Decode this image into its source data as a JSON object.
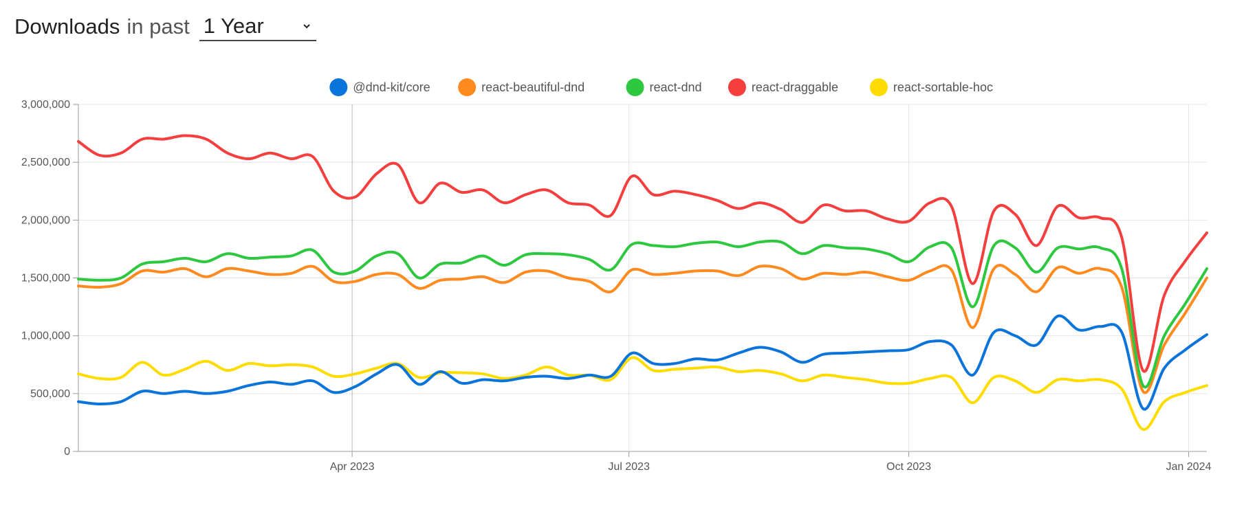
{
  "header": {
    "title": "Downloads",
    "subtitle": "in past",
    "period": "1 Year"
  },
  "chart_data": {
    "type": "line",
    "title": "",
    "xlabel": "",
    "ylabel": "",
    "ylim": [
      0,
      3000000
    ],
    "yticks": [
      {
        "value": 0,
        "label": "0"
      },
      {
        "value": 500000,
        "label": "500,000"
      },
      {
        "value": 1000000,
        "label": "1,000,000"
      },
      {
        "value": 1500000,
        "label": "1,500,000"
      },
      {
        "value": 2000000,
        "label": "2,000,000"
      },
      {
        "value": 2500000,
        "label": "2,500,000"
      },
      {
        "value": 3000000,
        "label": "3,000,000"
      }
    ],
    "xlim": [
      "2023-01-01",
      "2024-01-07"
    ],
    "xticks": [
      {
        "date": "2023-04-01",
        "label": "Apr 2023"
      },
      {
        "date": "2023-07-01",
        "label": "Jul 2023"
      },
      {
        "date": "2023-10-01",
        "label": "Oct 2023"
      },
      {
        "date": "2024-01-01",
        "label": "Jan 2024"
      }
    ],
    "grid": true,
    "legend_position": "top",
    "x": [
      "2023-01-01",
      "2023-01-08",
      "2023-01-15",
      "2023-01-22",
      "2023-01-29",
      "2023-02-05",
      "2023-02-12",
      "2023-02-19",
      "2023-02-26",
      "2023-03-05",
      "2023-03-12",
      "2023-03-19",
      "2023-03-26",
      "2023-04-02",
      "2023-04-09",
      "2023-04-16",
      "2023-04-23",
      "2023-04-30",
      "2023-05-07",
      "2023-05-14",
      "2023-05-21",
      "2023-05-28",
      "2023-06-04",
      "2023-06-11",
      "2023-06-18",
      "2023-06-25",
      "2023-07-02",
      "2023-07-09",
      "2023-07-16",
      "2023-07-23",
      "2023-07-30",
      "2023-08-06",
      "2023-08-13",
      "2023-08-20",
      "2023-08-27",
      "2023-09-03",
      "2023-09-10",
      "2023-09-17",
      "2023-09-24",
      "2023-10-01",
      "2023-10-08",
      "2023-10-15",
      "2023-10-22",
      "2023-10-29",
      "2023-11-05",
      "2023-11-12",
      "2023-11-19",
      "2023-11-26",
      "2023-12-03",
      "2023-12-10",
      "2023-12-17",
      "2023-12-24",
      "2023-12-31",
      "2024-01-07"
    ],
    "series": [
      {
        "name": "@dnd-kit/core",
        "color": "#0a74da",
        "values": [
          430000,
          410000,
          430000,
          520000,
          500000,
          520000,
          500000,
          520000,
          570000,
          600000,
          580000,
          610000,
          510000,
          560000,
          670000,
          750000,
          580000,
          690000,
          590000,
          620000,
          610000,
          640000,
          650000,
          630000,
          660000,
          650000,
          850000,
          760000,
          760000,
          800000,
          790000,
          850000,
          900000,
          860000,
          770000,
          840000,
          850000,
          860000,
          870000,
          880000,
          950000,
          920000,
          660000,
          1030000,
          1000000,
          920000,
          1170000,
          1050000,
          1080000,
          1030000,
          370000,
          720000,
          880000,
          1010000
        ]
      },
      {
        "name": "react-beautiful-dnd",
        "color": "#ff8a1f",
        "values": [
          1430000,
          1420000,
          1450000,
          1560000,
          1550000,
          1580000,
          1510000,
          1580000,
          1560000,
          1530000,
          1540000,
          1600000,
          1470000,
          1470000,
          1530000,
          1530000,
          1410000,
          1480000,
          1490000,
          1510000,
          1460000,
          1550000,
          1560000,
          1500000,
          1470000,
          1380000,
          1570000,
          1530000,
          1540000,
          1560000,
          1560000,
          1520000,
          1600000,
          1580000,
          1490000,
          1540000,
          1530000,
          1550000,
          1510000,
          1480000,
          1560000,
          1570000,
          1070000,
          1580000,
          1530000,
          1380000,
          1590000,
          1540000,
          1580000,
          1420000,
          520000,
          920000,
          1200000,
          1500000
        ]
      },
      {
        "name": "react-dnd",
        "color": "#2ec840",
        "values": [
          1490000,
          1480000,
          1500000,
          1620000,
          1640000,
          1670000,
          1640000,
          1710000,
          1670000,
          1680000,
          1690000,
          1740000,
          1550000,
          1560000,
          1690000,
          1710000,
          1500000,
          1620000,
          1630000,
          1690000,
          1610000,
          1700000,
          1710000,
          1700000,
          1660000,
          1570000,
          1790000,
          1780000,
          1770000,
          1800000,
          1810000,
          1770000,
          1810000,
          1810000,
          1710000,
          1780000,
          1760000,
          1750000,
          1710000,
          1640000,
          1770000,
          1760000,
          1250000,
          1780000,
          1760000,
          1550000,
          1760000,
          1750000,
          1760000,
          1580000,
          570000,
          1000000,
          1280000,
          1580000
        ]
      },
      {
        "name": "react-draggable",
        "color": "#f53f3f",
        "values": [
          2680000,
          2560000,
          2580000,
          2700000,
          2700000,
          2730000,
          2700000,
          2580000,
          2530000,
          2580000,
          2530000,
          2550000,
          2250000,
          2200000,
          2400000,
          2480000,
          2150000,
          2320000,
          2240000,
          2260000,
          2150000,
          2220000,
          2260000,
          2150000,
          2130000,
          2040000,
          2380000,
          2220000,
          2250000,
          2220000,
          2170000,
          2100000,
          2150000,
          2090000,
          1980000,
          2130000,
          2080000,
          2080000,
          2010000,
          1990000,
          2150000,
          2120000,
          1450000,
          2080000,
          2050000,
          1780000,
          2120000,
          2020000,
          2020000,
          1850000,
          700000,
          1350000,
          1650000,
          1890000
        ]
      },
      {
        "name": "react-sortable-hoc",
        "color": "#ffdc00",
        "values": [
          670000,
          630000,
          640000,
          770000,
          660000,
          710000,
          780000,
          700000,
          760000,
          740000,
          750000,
          730000,
          650000,
          670000,
          720000,
          760000,
          640000,
          680000,
          680000,
          670000,
          630000,
          660000,
          730000,
          660000,
          660000,
          620000,
          810000,
          700000,
          710000,
          720000,
          730000,
          690000,
          700000,
          670000,
          610000,
          660000,
          640000,
          620000,
          590000,
          590000,
          630000,
          640000,
          420000,
          640000,
          610000,
          510000,
          620000,
          610000,
          620000,
          540000,
          190000,
          430000,
          510000,
          570000
        ]
      }
    ]
  }
}
